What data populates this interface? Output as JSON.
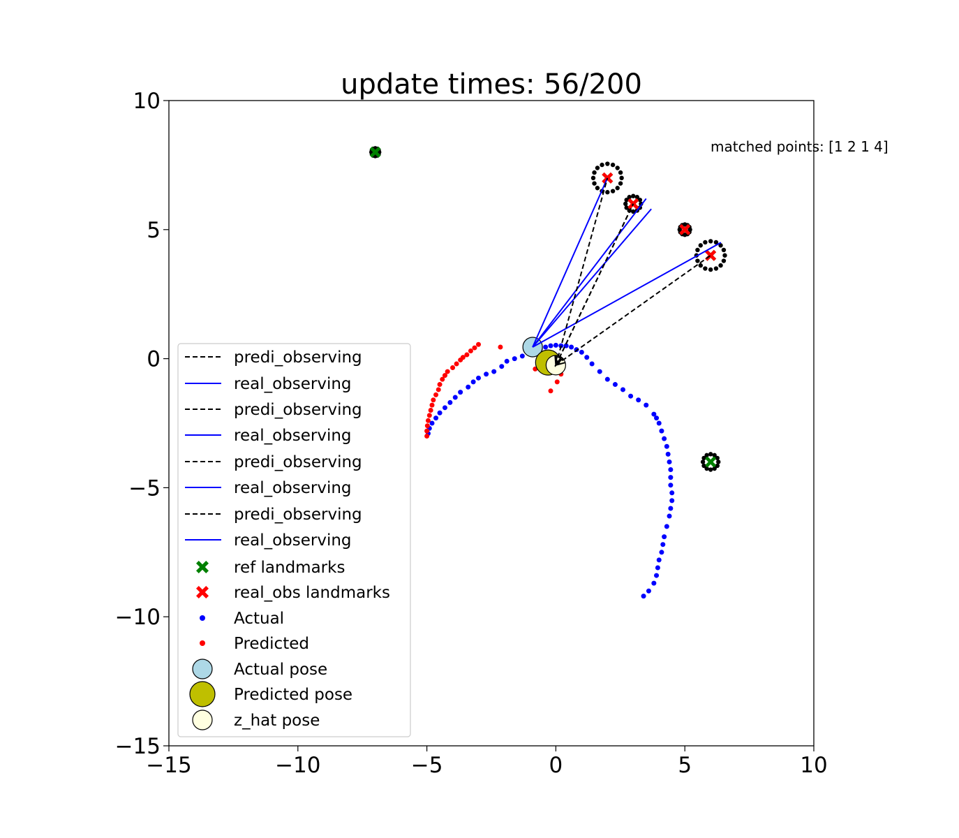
{
  "chart_data": {
    "type": "scatter",
    "title": "update times: 56/200",
    "annotation": "matched points: [1 2 1 4]",
    "xlim": [
      -15,
      10
    ],
    "ylim": [
      -15,
      10
    ],
    "xticks": [
      -15,
      -10,
      -5,
      0,
      5,
      10
    ],
    "yticks": [
      -15,
      -10,
      -5,
      0,
      5,
      10
    ],
    "xtick_labels": [
      "−15",
      "−10",
      "−5",
      "0",
      "5",
      "10"
    ],
    "ytick_labels": [
      "−15",
      "−10",
      "−5",
      "0",
      "5",
      "10"
    ],
    "grid": false,
    "legend_position": "lower left",
    "colors": {
      "actual": "#0000ff",
      "predicted": "#ff0000",
      "ref_landmark": "#008000",
      "real_obs_landmark": "#ff0000",
      "actual_pose": "#add8e6",
      "predicted_pose": "#bfbf00",
      "z_hat_pose": "#ffffe0",
      "predi_line": "#000000",
      "real_line": "#0000ff"
    },
    "legend": [
      {
        "label": "predi_observing",
        "kind": "dash"
      },
      {
        "label": "real_observing",
        "kind": "line"
      },
      {
        "label": "predi_observing",
        "kind": "dash"
      },
      {
        "label": "real_observing",
        "kind": "line"
      },
      {
        "label": "predi_observing",
        "kind": "dash"
      },
      {
        "label": "real_observing",
        "kind": "line"
      },
      {
        "label": "predi_observing",
        "kind": "dash"
      },
      {
        "label": "real_observing",
        "kind": "line"
      },
      {
        "label": "ref landmarks",
        "kind": "xgreen"
      },
      {
        "label": "real_obs landmarks",
        "kind": "xred"
      },
      {
        "label": "Actual",
        "kind": "dotblue"
      },
      {
        "label": "Predicted",
        "kind": "dotred"
      },
      {
        "label": "Actual pose",
        "kind": "circ_actual"
      },
      {
        "label": "Predicted pose",
        "kind": "circ_pred"
      },
      {
        "label": "z_hat pose",
        "kind": "circ_zhat"
      }
    ],
    "ref_landmarks": [
      [
        -7,
        8
      ],
      [
        2,
        7
      ],
      [
        3,
        6
      ],
      [
        5,
        5
      ],
      [
        6,
        4
      ],
      [
        6,
        -4
      ]
    ],
    "real_obs_landmarks": [
      [
        2,
        7
      ],
      [
        3,
        6
      ],
      [
        5,
        5
      ],
      [
        6,
        4
      ]
    ],
    "landmark_samples": [
      {
        "center": [
          -7,
          8
        ],
        "radius": 0.15
      },
      {
        "center": [
          2,
          7
        ],
        "radius": 0.55
      },
      {
        "center": [
          3,
          6
        ],
        "radius": 0.3
      },
      {
        "center": [
          5,
          5
        ],
        "radius": 0.2
      },
      {
        "center": [
          6,
          4
        ],
        "radius": 0.55
      },
      {
        "center": [
          6,
          -4
        ],
        "radius": 0.3
      }
    ],
    "actual_path": [
      [
        3.4,
        -9.2
      ],
      [
        3.6,
        -9.0
      ],
      [
        3.8,
        -8.7
      ],
      [
        3.9,
        -8.4
      ],
      [
        3.95,
        -8.1
      ],
      [
        4.0,
        -7.8
      ],
      [
        4.1,
        -7.5
      ],
      [
        4.15,
        -7.2
      ],
      [
        4.2,
        -6.9
      ],
      [
        4.3,
        -6.5
      ],
      [
        4.4,
        -6.1
      ],
      [
        4.45,
        -5.8
      ],
      [
        4.5,
        -5.5
      ],
      [
        4.5,
        -5.2
      ],
      [
        4.45,
        -4.9
      ],
      [
        4.45,
        -4.6
      ],
      [
        4.45,
        -4.3
      ],
      [
        4.4,
        -4.0
      ],
      [
        4.35,
        -3.7
      ],
      [
        4.3,
        -3.4
      ],
      [
        4.2,
        -3.1
      ],
      [
        4.1,
        -2.8
      ],
      [
        4.0,
        -2.5
      ],
      [
        3.9,
        -2.3
      ],
      [
        3.8,
        -2.15
      ],
      [
        3.5,
        -1.8
      ],
      [
        3.2,
        -1.6
      ],
      [
        2.9,
        -1.45
      ],
      [
        2.6,
        -1.2
      ],
      [
        2.3,
        -1.0
      ],
      [
        2.0,
        -0.8
      ],
      [
        1.7,
        -0.5
      ],
      [
        1.4,
        -0.2
      ],
      [
        1.2,
        0.05
      ],
      [
        1.0,
        0.25
      ],
      [
        0.8,
        0.35
      ],
      [
        0.6,
        0.45
      ],
      [
        0.4,
        0.5
      ],
      [
        0.2,
        0.5
      ],
      [
        0.0,
        0.52
      ],
      [
        -0.2,
        0.5
      ],
      [
        -0.4,
        0.45
      ],
      [
        -0.6,
        0.38
      ],
      [
        -0.8,
        0.3
      ],
      [
        -1.0,
        0.25
      ],
      [
        -1.3,
        0.1
      ],
      [
        -1.6,
        0.0
      ],
      [
        -1.9,
        -0.1
      ],
      [
        -2.1,
        -0.3
      ],
      [
        -2.4,
        -0.5
      ],
      [
        -2.7,
        -0.6
      ],
      [
        -3.0,
        -0.75
      ],
      [
        -3.2,
        -0.9
      ],
      [
        -3.4,
        -1.1
      ],
      [
        -3.7,
        -1.3
      ],
      [
        -3.9,
        -1.5
      ],
      [
        -4.1,
        -1.7
      ],
      [
        -4.3,
        -1.9
      ],
      [
        -4.5,
        -2.1
      ],
      [
        -4.65,
        -2.3
      ],
      [
        -4.8,
        -2.5
      ],
      [
        -4.9,
        -2.7
      ],
      [
        -4.95,
        -2.9
      ]
    ],
    "predicted_path": [
      [
        -5.0,
        -3.0
      ],
      [
        -5.0,
        -2.8
      ],
      [
        -4.98,
        -2.6
      ],
      [
        -4.95,
        -2.4
      ],
      [
        -4.9,
        -2.2
      ],
      [
        -4.85,
        -2.0
      ],
      [
        -4.8,
        -1.8
      ],
      [
        -4.75,
        -1.6
      ],
      [
        -4.65,
        -1.4
      ],
      [
        -4.55,
        -1.2
      ],
      [
        -4.5,
        -1.0
      ],
      [
        -4.4,
        -0.8
      ],
      [
        -4.3,
        -0.65
      ],
      [
        -4.2,
        -0.5
      ],
      [
        -4.0,
        -0.35
      ],
      [
        -3.85,
        -0.2
      ],
      [
        -3.7,
        -0.05
      ],
      [
        -3.6,
        0.05
      ],
      [
        -3.45,
        0.15
      ],
      [
        -3.3,
        0.3
      ],
      [
        -3.15,
        0.42
      ],
      [
        -3.0,
        0.55
      ],
      [
        -2.15,
        0.45
      ],
      [
        -0.8,
        -0.4
      ],
      [
        0.2,
        -0.6
      ],
      [
        0.05,
        -0.9
      ],
      [
        -0.2,
        -1.25
      ]
    ],
    "actual_pose": [
      -0.9,
      0.45
    ],
    "predicted_pose": [
      -0.3,
      -0.15
    ],
    "z_hat_pose": [
      0.0,
      -0.25
    ],
    "real_observing_lines": [
      {
        "from": [
          -0.9,
          0.45
        ],
        "to": [
          2.0,
          7.0
        ]
      },
      {
        "from": [
          -0.9,
          0.45
        ],
        "to": [
          3.5,
          6.2
        ]
      },
      {
        "from": [
          -0.9,
          0.45
        ],
        "to": [
          3.7,
          5.8
        ]
      },
      {
        "from": [
          -0.9,
          0.45
        ],
        "to": [
          6.4,
          4.5
        ]
      }
    ],
    "predi_observing_lines": [
      {
        "from": [
          0.0,
          -0.25
        ],
        "to": [
          2.0,
          7.0
        ]
      },
      {
        "from": [
          0.0,
          -0.25
        ],
        "to": [
          3.0,
          6.0
        ]
      },
      {
        "from": [
          0.0,
          -0.25
        ],
        "to": [
          3.0,
          6.0
        ]
      },
      {
        "from": [
          0.0,
          -0.25
        ],
        "to": [
          6.0,
          4.0
        ]
      }
    ]
  }
}
